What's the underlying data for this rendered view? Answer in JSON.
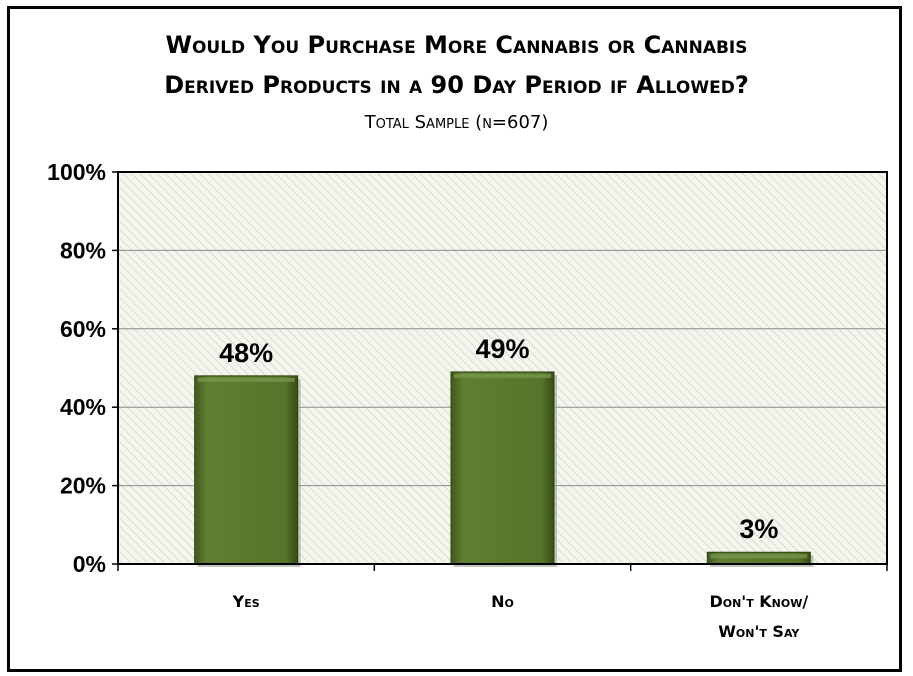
{
  "chart_data": {
    "type": "bar",
    "title_line1": "Would You Purchase More Cannabis or Cannabis",
    "title_line2": "Derived Products in a 90 Day Period if Allowed?",
    "subtitle": "Total Sample (n=607)",
    "categories": [
      {
        "lines": [
          "Yes"
        ]
      },
      {
        "lines": [
          "No"
        ]
      },
      {
        "lines": [
          "Don't Know/",
          "Won't Say"
        ]
      }
    ],
    "values": [
      48,
      49,
      3
    ],
    "data_labels": [
      "48%",
      "49%",
      "3%"
    ],
    "yticks": [
      "0%",
      "20%",
      "40%",
      "60%",
      "80%",
      "100%"
    ],
    "ylim": [
      0,
      100
    ],
    "grid": true,
    "bar_color": "#5a7a2e",
    "plot_background": "#ecefe4"
  }
}
